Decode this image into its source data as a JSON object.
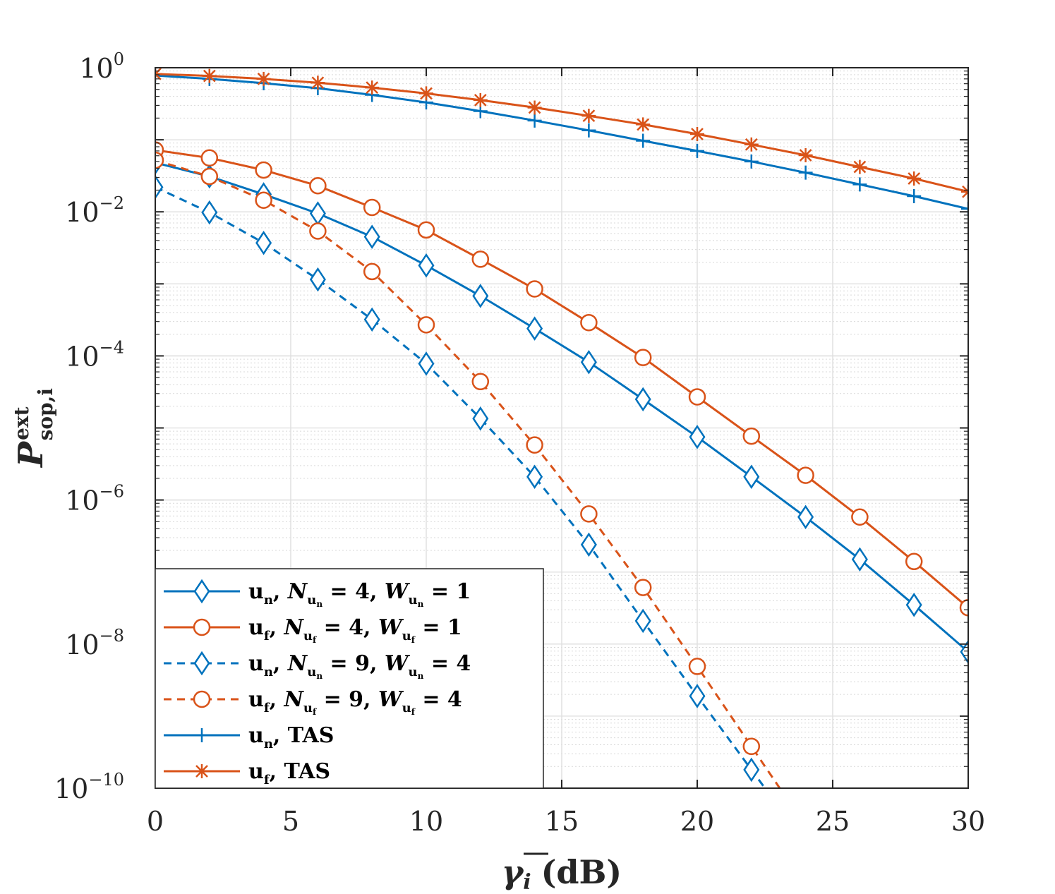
{
  "chart_data": {
    "type": "line",
    "title": "",
    "xlabel": "γ̄ᵢ (dB)",
    "xlabel_parts": {
      "symbol": "γ",
      "index": "i",
      "unit": "(dB)"
    },
    "ylabel": "P^ext_sop,i",
    "ylabel_parts": {
      "symbol": "P",
      "sup": "ext",
      "sub": "sop,i"
    },
    "xlim": [
      0,
      30
    ],
    "ylim_log10": [
      -10,
      0
    ],
    "yscale": "log",
    "grid": true,
    "minor_grid": true,
    "legend_position": "bottom-left",
    "x_ticks": [
      0,
      5,
      10,
      15,
      20,
      25,
      30
    ],
    "x_tick_labels": [
      "0",
      "5",
      "10",
      "15",
      "20",
      "25",
      "30"
    ],
    "y_ticks": [
      {
        "mantissa": "10",
        "exp": "0"
      },
      {
        "mantissa": "10",
        "exp": "−2"
      },
      {
        "mantissa": "10",
        "exp": "−4"
      },
      {
        "mantissa": "10",
        "exp": "−6"
      },
      {
        "mantissa": "10",
        "exp": "−8"
      },
      {
        "mantissa": "10",
        "exp": "−10"
      }
    ],
    "y_tick_exponents": [
      0,
      -2,
      -4,
      -6,
      -8,
      -10
    ],
    "series": [
      {
        "name": "un, Nun = 4, Wun = 1",
        "legend_parts": {
          "user": "u",
          "user_sub": "n",
          "nsym": "N",
          "nsub": "u",
          "nsubsub": "n",
          "nval": "= 4,",
          "wsym": "W",
          "wsub": "u",
          "wsubsub": "n",
          "wval": "= 1"
        },
        "color": "#0072BD",
        "dash": "solid",
        "marker": "diamond",
        "x": [
          0,
          2,
          4,
          6,
          8,
          10,
          12,
          14,
          16,
          18,
          20,
          22,
          24,
          26,
          28,
          30
        ],
        "y": [
          0.048,
          0.031,
          0.0175,
          0.0095,
          0.0045,
          0.0018,
          0.00068,
          0.00024,
          8.2e-05,
          2.5e-05,
          7.5e-06,
          2.1e-06,
          5.8e-07,
          1.5e-07,
          3.5e-08,
          7.8e-09
        ]
      },
      {
        "name": "uf, Nuf = 4, Wuf = 1",
        "legend_parts": {
          "user": "u",
          "user_sub": "f",
          "nsym": "N",
          "nsub": "u",
          "nsubsub": "f",
          "nval": "= 4,",
          "wsym": "W",
          "wsub": "u",
          "wsubsub": "f",
          "wval": "= 1"
        },
        "color": "#D95319",
        "dash": "solid",
        "marker": "circle",
        "x": [
          0,
          2,
          4,
          6,
          8,
          10,
          12,
          14,
          16,
          18,
          20,
          22,
          24,
          26,
          28,
          30
        ],
        "y": [
          0.072,
          0.056,
          0.038,
          0.023,
          0.0115,
          0.0056,
          0.0022,
          0.00085,
          0.00029,
          9.5e-05,
          2.7e-05,
          7.7e-06,
          2.2e-06,
          5.8e-07,
          1.4e-07,
          3.2e-08
        ]
      },
      {
        "name": "un, Nun = 9, Wun = 4",
        "legend_parts": {
          "user": "u",
          "user_sub": "n",
          "nsym": "N",
          "nsub": "u",
          "nsubsub": "n",
          "nval": "= 9,",
          "wsym": "W",
          "wsub": "u",
          "wsubsub": "n",
          "wval": "= 4"
        },
        "color": "#0072BD",
        "dash": "dashed",
        "marker": "diamond",
        "x": [
          0,
          2,
          4,
          6,
          8,
          10,
          12,
          14,
          16,
          18,
          20,
          22
        ],
        "y": [
          0.022,
          0.0098,
          0.0037,
          0.00115,
          0.00032,
          7.8e-05,
          1.35e-05,
          2.1e-06,
          2.4e-07,
          2.1e-08,
          1.9e-09,
          1.8e-10
        ]
      },
      {
        "name": "uf, Nuf = 9, Wuf = 4",
        "legend_parts": {
          "user": "u",
          "user_sub": "f",
          "nsym": "N",
          "nsub": "u",
          "nsubsub": "f",
          "nval": "= 9,",
          "wsym": "W",
          "wsub": "u",
          "wsubsub": "f",
          "wval": "= 4"
        },
        "color": "#D95319",
        "dash": "dashed",
        "marker": "circle",
        "x": [
          0,
          2,
          4,
          6,
          8,
          10,
          12,
          14,
          16,
          18,
          20,
          22
        ],
        "y": [
          0.052,
          0.031,
          0.0145,
          0.0054,
          0.00148,
          0.00027,
          4.4e-05,
          5.8e-06,
          6.4e-07,
          6.1e-08,
          4.9e-09,
          3.8e-10
        ]
      },
      {
        "name": "un, TAS",
        "legend_parts": {
          "user": "u",
          "user_sub": "n",
          "tail": "TAS"
        },
        "color": "#0072BD",
        "dash": "solid",
        "marker": "plus",
        "x": [
          0,
          2,
          4,
          6,
          8,
          10,
          12,
          14,
          16,
          18,
          20,
          22,
          24,
          26,
          28,
          30
        ],
        "y": [
          0.78,
          0.7,
          0.61,
          0.52,
          0.42,
          0.33,
          0.25,
          0.185,
          0.135,
          0.097,
          0.07,
          0.05,
          0.035,
          0.024,
          0.0165,
          0.011
        ]
      },
      {
        "name": "uf, TAS",
        "legend_parts": {
          "user": "u",
          "user_sub": "f",
          "tail": "TAS"
        },
        "color": "#D95319",
        "dash": "solid",
        "marker": "asterisk",
        "x": [
          0,
          2,
          4,
          6,
          8,
          10,
          12,
          14,
          16,
          18,
          20,
          22,
          24,
          26,
          28,
          30
        ],
        "y": [
          0.82,
          0.77,
          0.7,
          0.62,
          0.53,
          0.44,
          0.355,
          0.28,
          0.215,
          0.163,
          0.12,
          0.086,
          0.061,
          0.042,
          0.029,
          0.019
        ]
      }
    ]
  }
}
